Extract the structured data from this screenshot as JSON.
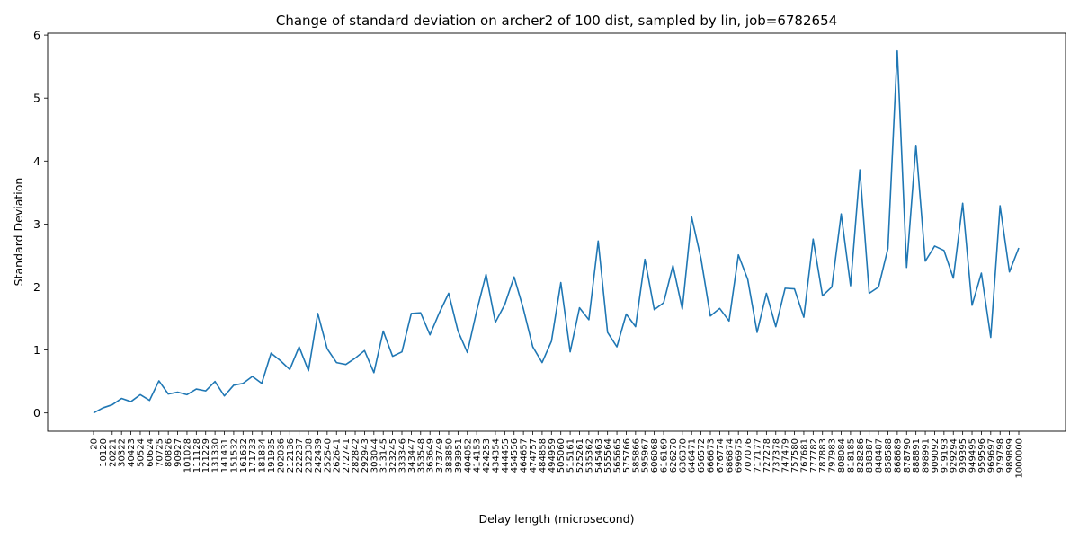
{
  "chart_data": {
    "type": "line",
    "title": "Change of standard deviation on archer2 of 100 dist, sampled by lin, job=6782654",
    "xlabel": "Delay length (microsecond)",
    "ylabel": "Standard Deviation",
    "ylim": [
      -0.29,
      6.03
    ],
    "yticks": [
      0,
      1,
      2,
      3,
      4,
      5,
      6
    ],
    "grid": false,
    "legend": "none",
    "line_color": "#1f77b4",
    "categories": [
      "20",
      "10120",
      "20221",
      "30322",
      "40423",
      "50524",
      "60624",
      "70725",
      "80826",
      "90927",
      "101028",
      "111128",
      "121229",
      "131330",
      "141431",
      "151532",
      "161632",
      "171733",
      "181834",
      "191935",
      "202036",
      "212136",
      "222237",
      "232338",
      "242439",
      "252540",
      "262641",
      "272741",
      "282842",
      "292943",
      "303044",
      "313145",
      "323245",
      "333346",
      "343447",
      "353548",
      "363649",
      "373749",
      "383850",
      "393951",
      "404052",
      "414153",
      "424253",
      "434354",
      "444455",
      "454556",
      "464657",
      "474757",
      "484858",
      "494959",
      "505060",
      "515161",
      "525261",
      "535362",
      "545463",
      "555564",
      "565665",
      "575766",
      "585866",
      "595967",
      "606068",
      "616169",
      "626270",
      "636370",
      "646471",
      "656572",
      "666673",
      "676774",
      "686874",
      "696975",
      "707076",
      "717177",
      "727278",
      "737378",
      "747479",
      "757580",
      "767681",
      "777782",
      "787883",
      "797983",
      "808084",
      "818185",
      "828286",
      "838387",
      "848487",
      "858588",
      "868689",
      "878790",
      "888891",
      "898991",
      "909092",
      "919193",
      "929294",
      "939395",
      "949495",
      "959596",
      "969697",
      "979798",
      "989899",
      "1000000"
    ],
    "values": [
      0.0,
      0.08,
      0.13,
      0.23,
      0.18,
      0.29,
      0.2,
      0.51,
      0.3,
      0.33,
      0.29,
      0.38,
      0.35,
      0.5,
      0.27,
      0.44,
      0.47,
      0.58,
      0.47,
      0.95,
      0.83,
      0.69,
      1.05,
      0.67,
      1.58,
      1.02,
      0.8,
      0.77,
      0.87,
      0.99,
      0.64,
      1.3,
      0.9,
      0.97,
      1.58,
      1.59,
      1.24,
      1.59,
      1.9,
      1.3,
      0.96,
      1.62,
      2.2,
      1.44,
      1.72,
      2.16,
      1.65,
      1.05,
      0.8,
      1.14,
      2.07,
      0.97,
      1.67,
      1.48,
      2.73,
      1.28,
      1.05,
      1.57,
      1.37,
      2.44,
      1.64,
      1.75,
      2.34,
      1.65,
      3.11,
      2.45,
      1.54,
      1.66,
      1.46,
      2.51,
      2.12,
      1.28,
      1.9,
      1.37,
      1.98,
      1.97,
      1.52,
      2.76,
      1.86,
      2.0,
      3.16,
      2.02,
      3.86,
      1.9,
      2.0,
      2.61,
      5.75,
      2.31,
      4.25,
      2.41,
      2.65,
      2.58,
      2.14,
      3.33,
      1.71,
      2.22,
      1.2,
      3.29,
      2.24,
      2.62
    ]
  }
}
